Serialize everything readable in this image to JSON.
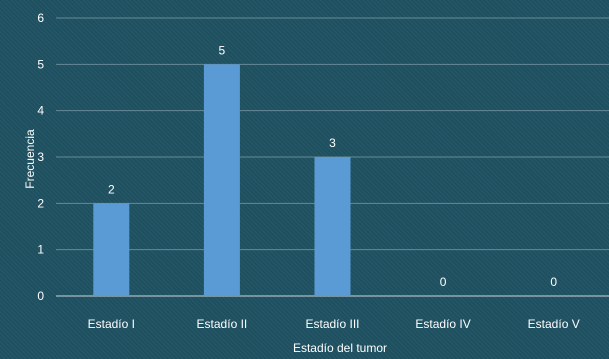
{
  "chart_data": {
    "type": "bar",
    "categories": [
      "Estadío I",
      "Estadío II",
      "Estadío III",
      "Estadío IV",
      "Estadío V"
    ],
    "values": [
      2,
      5,
      3,
      0,
      0
    ],
    "data_labels": [
      "2",
      "5",
      "3",
      "0",
      "0"
    ],
    "title": "",
    "xlabel": "Estadío del tumor",
    "ylabel": "Frecuencia",
    "ylim": [
      0,
      6
    ],
    "yticks": [
      "0",
      "1",
      "2",
      "3",
      "4",
      "5",
      "6"
    ],
    "grid": true,
    "legend": "none"
  },
  "colors": {
    "background": "#1f5263",
    "bar": "#5b9bd5",
    "text": "#ffffff",
    "grid": "#9fb8c0"
  }
}
